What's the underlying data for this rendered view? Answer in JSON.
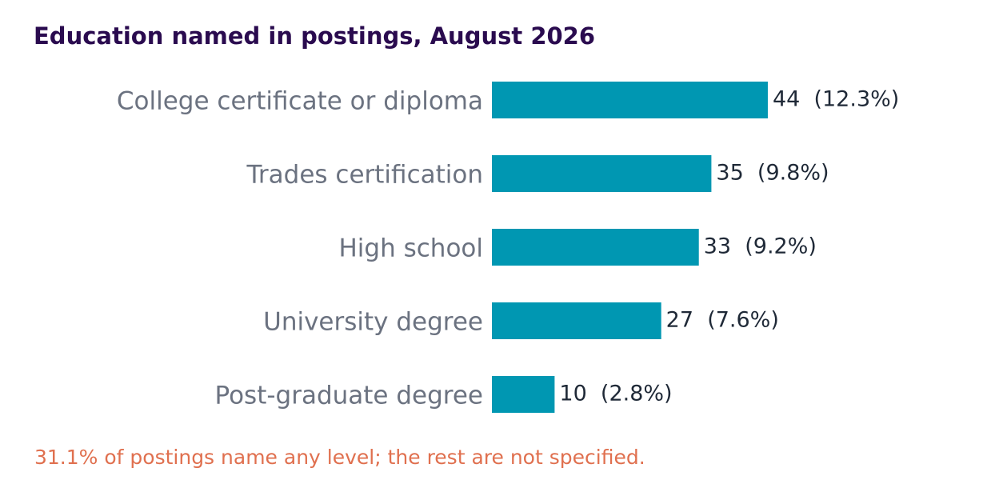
{
  "chart_data": {
    "type": "bar",
    "orientation": "horizontal",
    "title": "Education named in postings, August 2026",
    "categories": [
      "College certificate or diploma",
      "Trades certification",
      "High school",
      "University degree",
      "Post-graduate degree"
    ],
    "values": [
      44,
      35,
      33,
      27,
      10
    ],
    "value_labels": [
      "44  (12.3%)",
      "35  (9.8%)",
      "33  (9.2%)",
      "27  (7.6%)",
      "10  (2.8%)"
    ],
    "color": "#0097b2",
    "note": "31.1% of postings name any level; the rest are not specified."
  }
}
